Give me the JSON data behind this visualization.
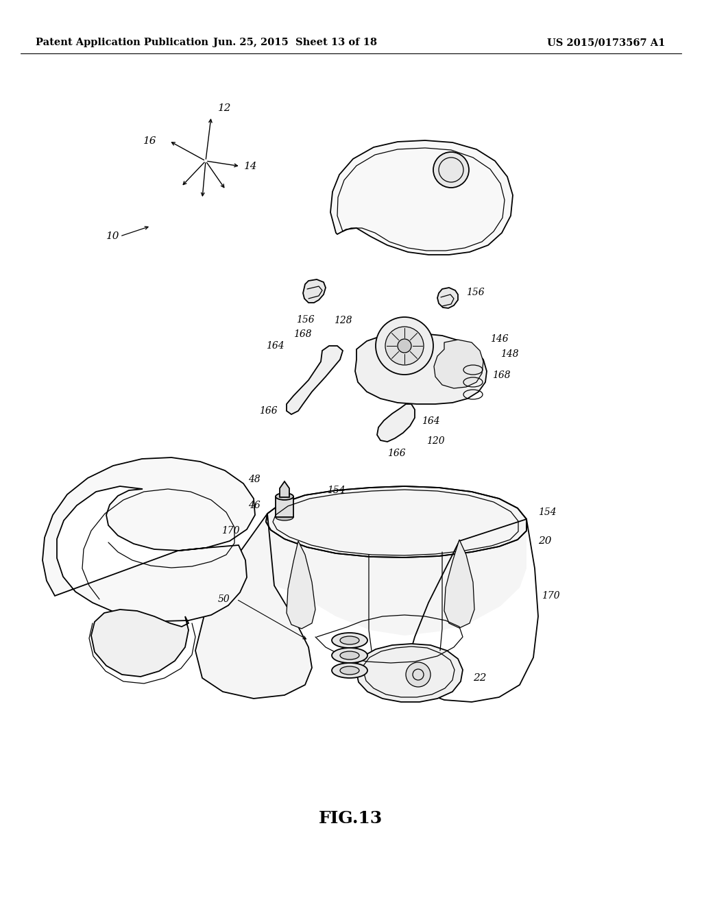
{
  "header_left": "Patent Application Publication",
  "header_mid": "Jun. 25, 2015  Sheet 13 of 18",
  "header_right": "US 2015/0173567 A1",
  "figure_label": "FIG.13",
  "bg_color": "#ffffff",
  "line_color": "#000000",
  "header_fontsize": 10.5,
  "label_fontsize": 11,
  "fig_label_fontsize": 18
}
